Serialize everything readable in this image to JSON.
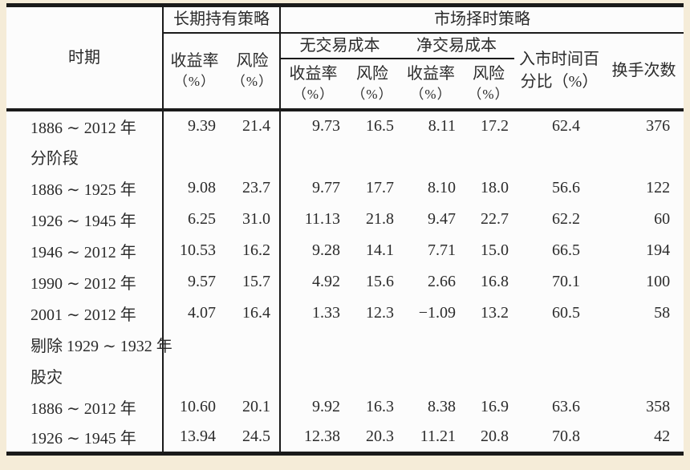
{
  "colors": {
    "page_background": "#f5ecd8",
    "table_background": "#fcfcfc",
    "rule_line": "#1a1a1a",
    "text": "#2b2b2b"
  },
  "table": {
    "header": {
      "period": "时期",
      "hold_group": "长期持有策略",
      "timing_group": "市场择时策略",
      "no_cost_group": "无交易成本",
      "net_cost_group": "净交易成本",
      "return_label": "收益率",
      "risk_label": "风险",
      "pct_label": "（%）",
      "market_time_line1": "入市时间百",
      "market_time_line2": "分比（%）",
      "turnover_label": "换手次数"
    },
    "rows": [
      {
        "label": "1886 ∼ 2012 年",
        "values": [
          "9.39",
          "21.4",
          "9.73",
          "16.5",
          "8.11",
          "17.2",
          "62.4",
          "376"
        ]
      },
      {
        "label": "分阶段",
        "values": []
      },
      {
        "label": "1886 ∼ 1925 年",
        "values": [
          "9.08",
          "23.7",
          "9.77",
          "17.7",
          "8.10",
          "18.0",
          "56.6",
          "122"
        ]
      },
      {
        "label": "1926 ∼ 1945 年",
        "values": [
          "6.25",
          "31.0",
          "11.13",
          "21.8",
          "9.47",
          "22.7",
          "62.2",
          "60"
        ]
      },
      {
        "label": "1946 ∼ 2012 年",
        "values": [
          "10.53",
          "16.2",
          "9.28",
          "14.1",
          "7.71",
          "15.0",
          "66.5",
          "194"
        ]
      },
      {
        "label": "1990 ∼ 2012 年",
        "values": [
          "9.57",
          "15.7",
          "4.92",
          "15.6",
          "2.66",
          "16.8",
          "70.1",
          "100"
        ]
      },
      {
        "label": "2001 ∼ 2012 年",
        "values": [
          "4.07",
          "16.4",
          "1.33",
          "12.3",
          "−1.09",
          "13.2",
          "60.5",
          "58"
        ]
      },
      {
        "label": "剔除 1929 ∼ 1932 年",
        "values": []
      },
      {
        "label": "股灾",
        "values": []
      },
      {
        "label": "1886 ∼ 2012 年",
        "values": [
          "10.60",
          "20.1",
          "9.92",
          "16.3",
          "8.38",
          "16.9",
          "63.6",
          "358"
        ]
      },
      {
        "label": "1926 ∼ 1945 年",
        "values": [
          "13.94",
          "24.5",
          "12.38",
          "20.3",
          "11.21",
          "20.8",
          "70.8",
          "42"
        ]
      }
    ]
  }
}
